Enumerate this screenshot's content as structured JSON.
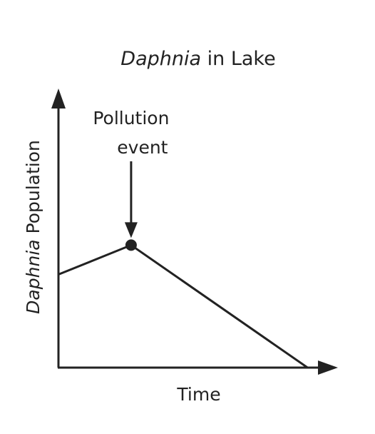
{
  "chart_data": {
    "type": "line",
    "title": {
      "italic": "Daphnia",
      "rest": " in Lake"
    },
    "xlabel": "Time",
    "ylabel": {
      "italic": "Daphnia",
      "rest": " Population"
    },
    "xlim": [
      0,
      10
    ],
    "ylim": [
      0,
      10
    ],
    "series": [
      {
        "x": [
          0,
          2.8,
          9.6
        ],
        "y": [
          3.5,
          4.6,
          0
        ]
      }
    ],
    "annotations": [
      {
        "lines": [
          "Pollution",
          "event"
        ],
        "x": 2.8,
        "y": 4.6,
        "arrow": true,
        "marker": true
      }
    ],
    "grid": false,
    "ticks": false,
    "legend": false,
    "colors": {
      "line": "#222222",
      "text": "#222222"
    }
  }
}
